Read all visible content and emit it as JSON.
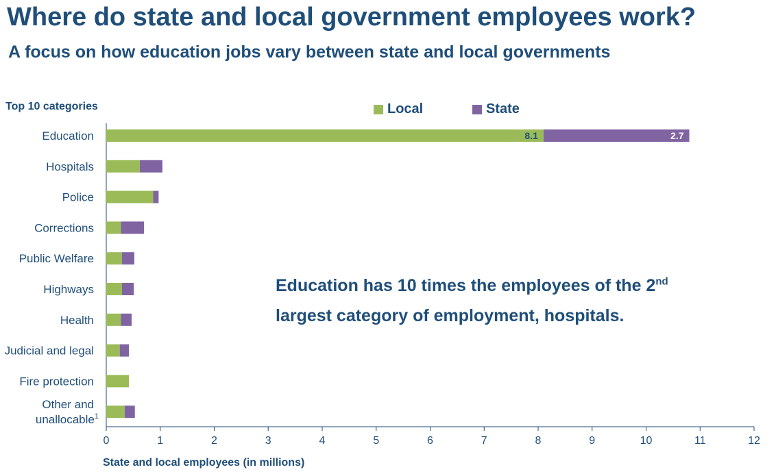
{
  "title": "Where do state and local government employees work?",
  "subtitle": "A focus on how education jobs vary between state and local governments",
  "annotation": {
    "part1": "Education has 10 times the employees of the 2",
    "sup": "nd",
    "part2": "largest category of employment, hospitals."
  },
  "colors": {
    "local": "#9bbb59",
    "state": "#8064a2",
    "text": "#1f4e79",
    "axis": "#1f4e79"
  },
  "chart_data": {
    "type": "bar",
    "orientation": "horizontal",
    "stacked": true,
    "category_header": "Top 10 categories",
    "categories": [
      "Education",
      "Hospitals",
      "Police",
      "Corrections",
      "Public Welfare",
      "Highways",
      "Health",
      "Judicial and legal",
      "Fire protection",
      "Other and unallocable"
    ],
    "category_label_lines": [
      [
        "Education"
      ],
      [
        "Hospitals"
      ],
      [
        "Police"
      ],
      [
        "Corrections"
      ],
      [
        "Public Welfare"
      ],
      [
        "Highways"
      ],
      [
        "Health"
      ],
      [
        "Judicial and legal"
      ],
      [
        "Fire protection"
      ],
      [
        "Other and",
        "unallocable"
      ]
    ],
    "category_footnote": {
      "index": 9,
      "mark": "1"
    },
    "series": [
      {
        "name": "Local",
        "values": [
          8.1,
          0.62,
          0.87,
          0.27,
          0.29,
          0.29,
          0.27,
          0.25,
          0.42,
          0.34
        ]
      },
      {
        "name": "State",
        "values": [
          2.7,
          0.42,
          0.1,
          0.43,
          0.23,
          0.22,
          0.2,
          0.17,
          0.0,
          0.19
        ]
      }
    ],
    "data_labels": [
      {
        "series": 0,
        "index": 0,
        "text": "8.1"
      },
      {
        "series": 1,
        "index": 0,
        "text": "2.7"
      }
    ],
    "xlabel": "State and local employees (in millions)",
    "xlim": [
      0,
      12
    ],
    "xticks": [
      0,
      1,
      2,
      3,
      4,
      5,
      6,
      7,
      8,
      9,
      10,
      11,
      12
    ],
    "grid": false,
    "legend": "top-center"
  }
}
